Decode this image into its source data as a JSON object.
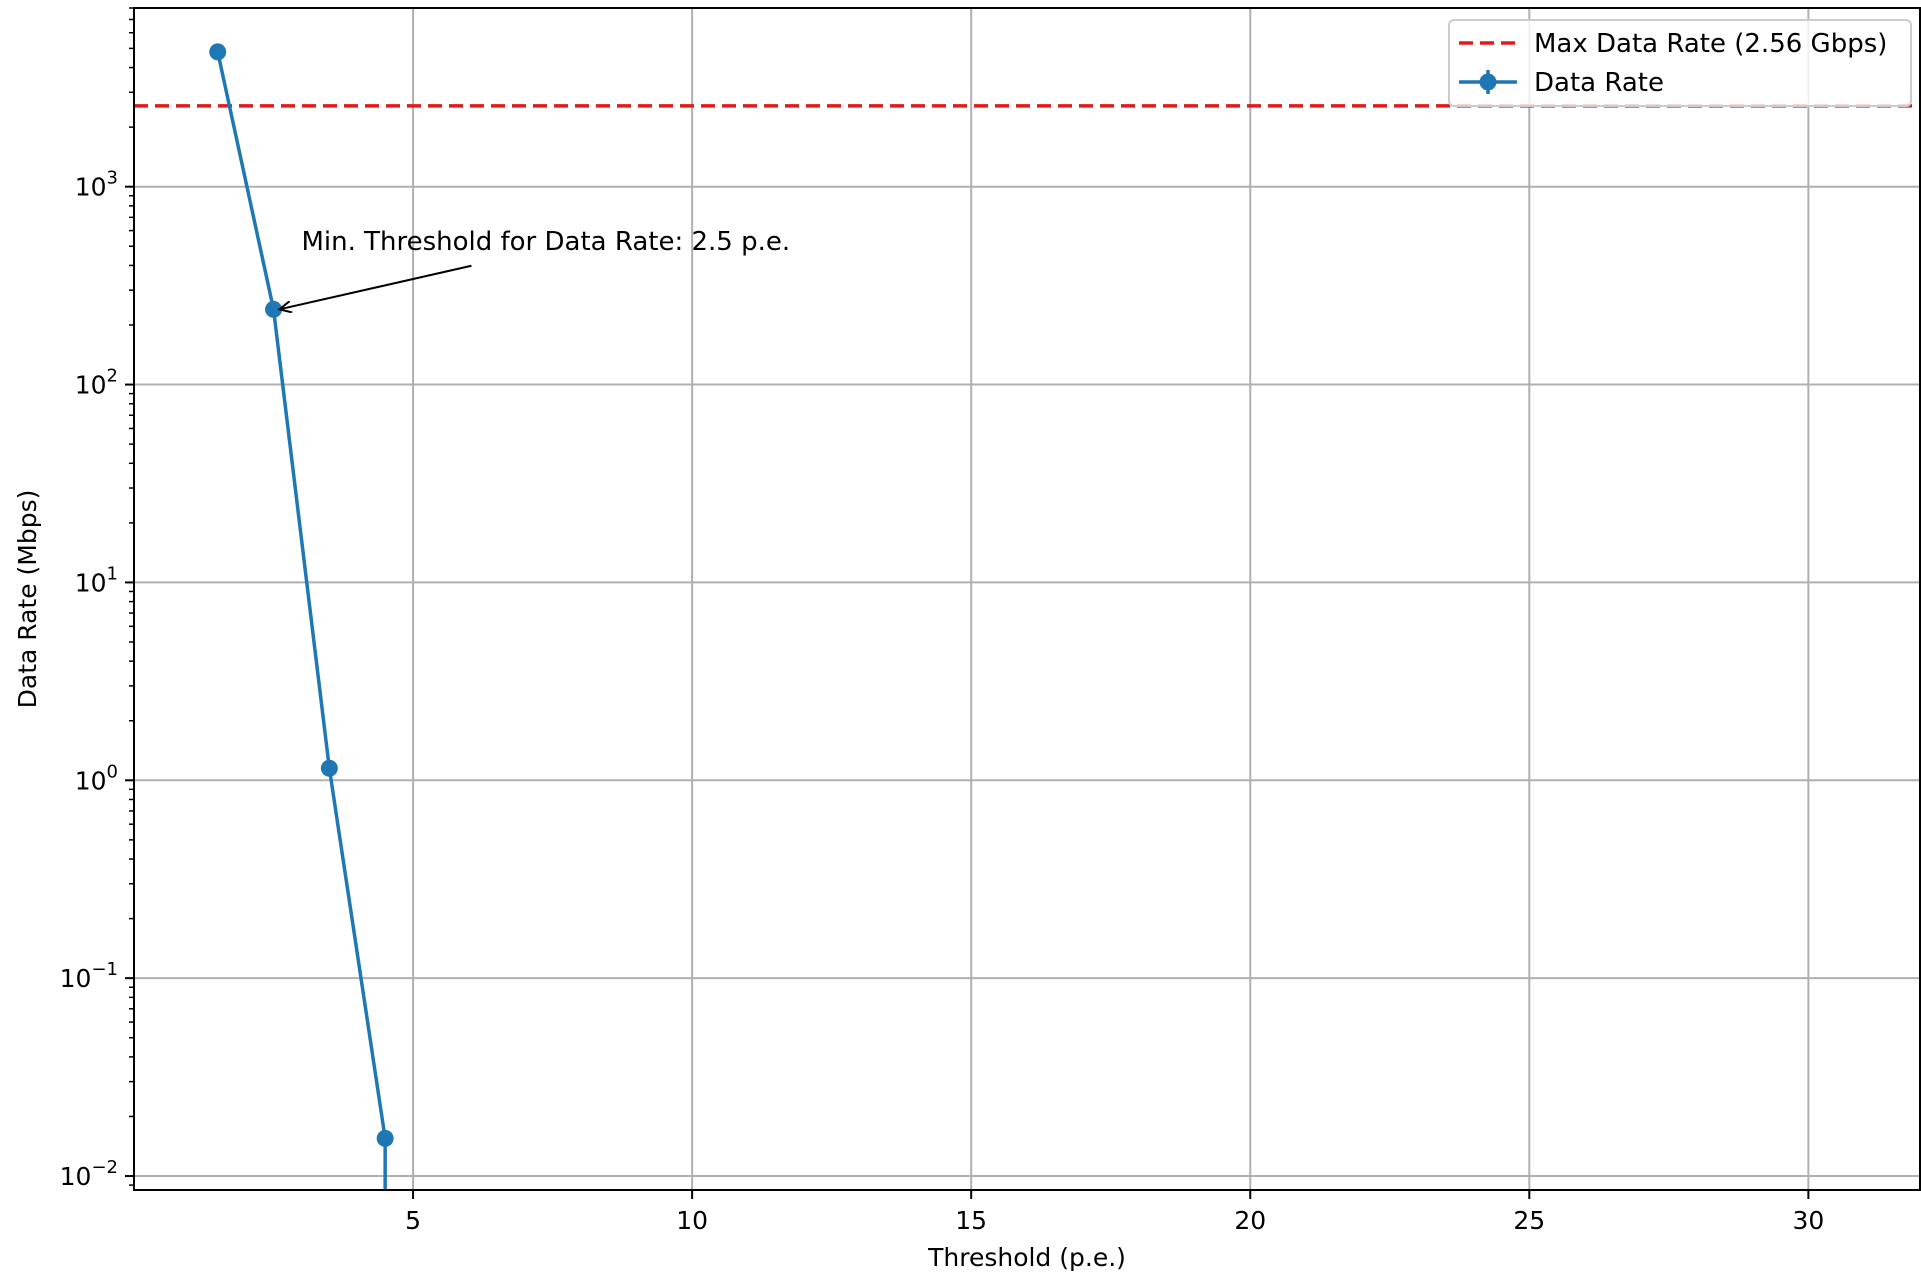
{
  "chart_data": {
    "type": "line",
    "xlabel": "Threshold (p.e.)",
    "ylabel": "Data Rate (Mbps)",
    "xlim": [
      0,
      32
    ],
    "ylim": [
      0.0085,
      8000
    ],
    "yscale": "log",
    "grid": true,
    "legend_placement": "top-right",
    "x_ticks": [
      5,
      10,
      15,
      20,
      25,
      30
    ],
    "x_tick_labels": [
      "5",
      "10",
      "15",
      "20",
      "25",
      "30"
    ],
    "y_ticks": [
      0.01,
      0.1,
      1,
      10,
      100,
      1000
    ],
    "y_tick_labels": [
      {
        "base": "10",
        "exp": "−2"
      },
      {
        "base": "10",
        "exp": "−1"
      },
      {
        "base": "10",
        "exp": "0"
      },
      {
        "base": "10",
        "exp": "1"
      },
      {
        "base": "10",
        "exp": "2"
      },
      {
        "base": "10",
        "exp": "3"
      }
    ],
    "series": [
      {
        "name": "Data Rate",
        "color": "#1f77b4",
        "marker": "circle",
        "x": [
          1.5,
          2.5,
          3.5,
          4.5
        ],
        "y": [
          4800,
          240,
          1.15,
          0.0155
        ],
        "continues_below_axis_at_x": 4.5
      }
    ],
    "reference_lines": [
      {
        "name": "Max Data Rate (2.56 Gbps)",
        "orientation": "horizontal",
        "value": 2560,
        "color": "#e31a1c",
        "style": "dashed"
      }
    ],
    "annotations": [
      {
        "text": "Min. Threshold for Data Rate: 2.5 p.e.",
        "target_x": 2.5,
        "target_y": 240,
        "text_x": 3,
        "text_y": 480
      }
    ]
  }
}
